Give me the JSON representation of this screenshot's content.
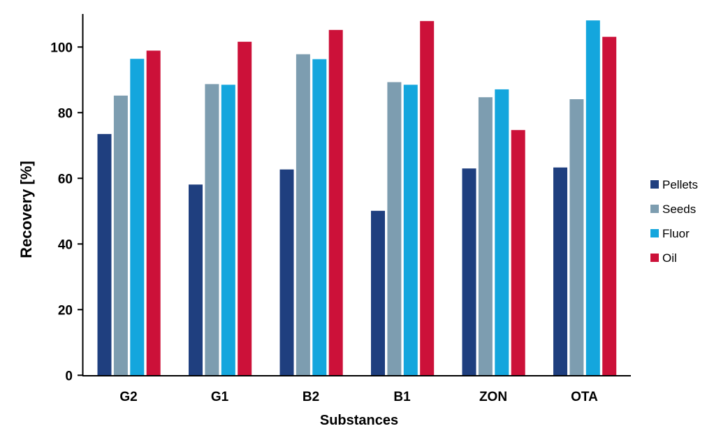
{
  "chart_data": {
    "type": "bar",
    "xlabel": "Substances",
    "ylabel": "Recovery [%]",
    "ylim": [
      0,
      110
    ],
    "yticks": [
      0,
      20,
      40,
      60,
      80,
      100
    ],
    "grid": false,
    "legend_position": "right",
    "categories": [
      "G2",
      "G1",
      "B2",
      "B1",
      "ZON",
      "OTA"
    ],
    "series": [
      {
        "name": "Pellets",
        "color": "#1f3f7f",
        "values": [
          73.5,
          58.1,
          62.7,
          50.1,
          63.0,
          63.3
        ]
      },
      {
        "name": "Seeds",
        "color": "#7d9db0",
        "values": [
          85.2,
          88.7,
          97.8,
          89.3,
          84.7,
          84.1
        ]
      },
      {
        "name": "Fluor",
        "color": "#14a6dd",
        "values": [
          96.4,
          88.5,
          96.3,
          88.5,
          87.1,
          108.1
        ]
      },
      {
        "name": "Oil",
        "color": "#cc1139",
        "values": [
          98.9,
          101.6,
          105.2,
          107.9,
          74.7,
          103.1
        ]
      }
    ]
  }
}
